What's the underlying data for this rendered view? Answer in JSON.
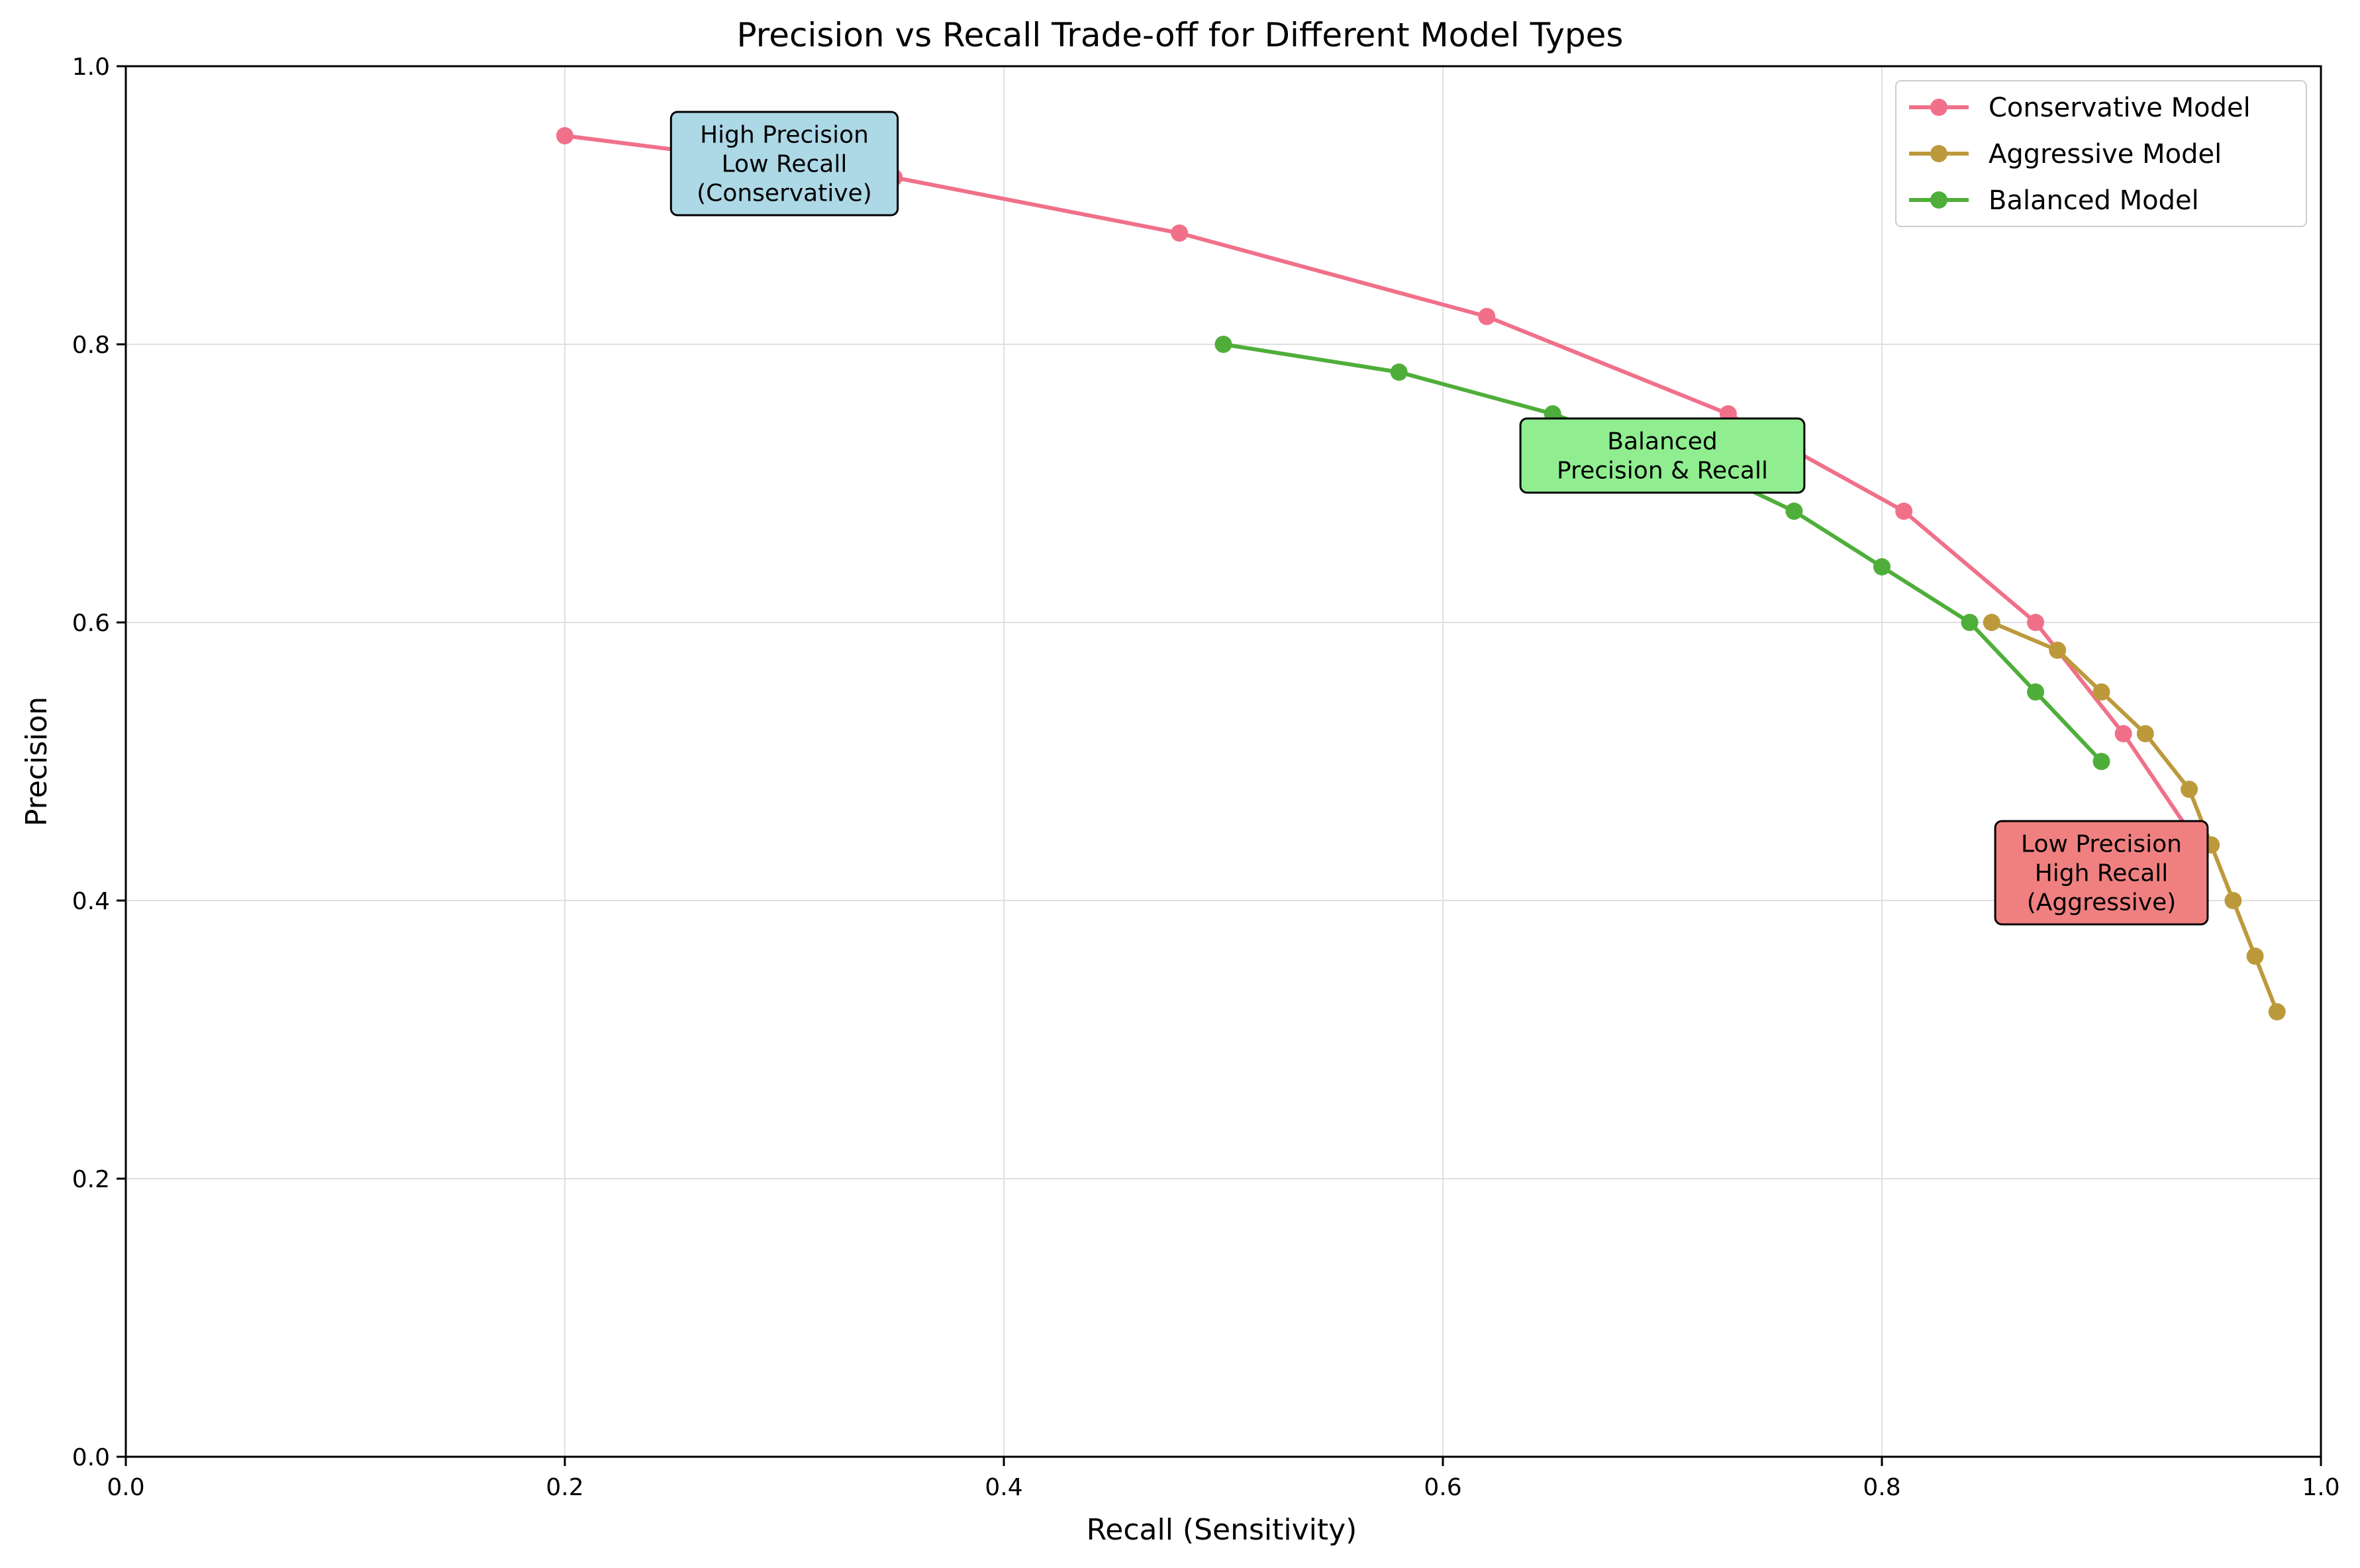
{
  "chart_data": {
    "type": "line",
    "title": "Precision vs Recall Trade-off for Different Model Types",
    "xlabel": "Recall (Sensitivity)",
    "ylabel": "Precision",
    "xlim": [
      0,
      1
    ],
    "ylim": [
      0,
      1
    ],
    "xticks": [
      "0.0",
      "0.2",
      "0.4",
      "0.6",
      "0.8",
      "1.0"
    ],
    "yticks": [
      "0.0",
      "0.2",
      "0.4",
      "0.6",
      "0.8",
      "1.0"
    ],
    "grid": true,
    "legend_position": "top-right",
    "series": [
      {
        "name": "Conservative Model",
        "color": "#f0708a",
        "x": [
          0.2,
          0.35,
          0.48,
          0.62,
          0.73,
          0.81,
          0.87,
          0.91,
          0.94
        ],
        "y": [
          0.95,
          0.92,
          0.88,
          0.82,
          0.75,
          0.68,
          0.6,
          0.52,
          0.45
        ]
      },
      {
        "name": "Aggressive Model",
        "color": "#bc9a3c",
        "x": [
          0.85,
          0.88,
          0.9,
          0.92,
          0.94,
          0.95,
          0.96,
          0.97,
          0.98
        ],
        "y": [
          0.6,
          0.58,
          0.55,
          0.52,
          0.48,
          0.44,
          0.4,
          0.36,
          0.32
        ]
      },
      {
        "name": "Balanced Model",
        "color": "#4fae3a",
        "x": [
          0.5,
          0.58,
          0.65,
          0.72,
          0.76,
          0.8,
          0.84,
          0.87,
          0.9
        ],
        "y": [
          0.8,
          0.78,
          0.75,
          0.71,
          0.68,
          0.64,
          0.6,
          0.55,
          0.5
        ]
      }
    ],
    "annotations": [
      {
        "lines": [
          "High Precision",
          "Low Recall",
          "(Conservative)"
        ],
        "x": 0.3,
        "y": 0.93,
        "background": "#add8e6"
      },
      {
        "lines": [
          "Balanced",
          "Precision & Recall"
        ],
        "x": 0.7,
        "y": 0.72,
        "background": "#90ee90"
      },
      {
        "lines": [
          "Low Precision",
          "High Recall",
          "(Aggressive)"
        ],
        "x": 0.9,
        "y": 0.42,
        "background": "#f08080"
      }
    ]
  }
}
